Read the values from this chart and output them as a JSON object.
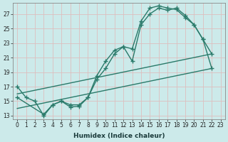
{
  "xlabel": "Humidex (Indice chaleur)",
  "background_color": "#cceaea",
  "grid_color": "#ddbebe",
  "line_color": "#2a7a6a",
  "xlim": [
    -0.5,
    23.5
  ],
  "ylim": [
    12.5,
    28.5
  ],
  "xticks": [
    0,
    1,
    2,
    3,
    4,
    5,
    6,
    7,
    8,
    9,
    10,
    11,
    12,
    13,
    14,
    15,
    16,
    17,
    18,
    19,
    20,
    21,
    22,
    23
  ],
  "yticks": [
    13,
    15,
    17,
    19,
    21,
    23,
    25,
    27
  ],
  "curve1_x": [
    0,
    1,
    2,
    3,
    4,
    5,
    6,
    7,
    8,
    9,
    10,
    11,
    12,
    13,
    14,
    15,
    16,
    17,
    18,
    19,
    20,
    21,
    22
  ],
  "curve1_y": [
    17,
    15.5,
    15,
    13,
    14.5,
    15,
    14.2,
    14.3,
    15.5,
    18.5,
    20.5,
    22.0,
    22.5,
    22.2,
    26.0,
    27.8,
    28.1,
    27.8,
    27.6,
    26.5,
    25.5,
    23.5,
    21.5
  ],
  "curve2_x": [
    0,
    3,
    4,
    5,
    6,
    7,
    8,
    9,
    10,
    11,
    12,
    13,
    14,
    15,
    16,
    17,
    18,
    19,
    20,
    21,
    22
  ],
  "curve2_y": [
    15.5,
    13.2,
    14.5,
    15.0,
    14.5,
    14.5,
    15.5,
    18.0,
    19.5,
    21.5,
    22.5,
    20.5,
    25.5,
    27.0,
    27.8,
    27.5,
    27.8,
    26.8,
    25.5,
    23.5,
    19.5
  ],
  "line3_x": [
    0,
    22
  ],
  "line3_y": [
    14.0,
    19.5
  ],
  "line4_x": [
    0,
    22
  ],
  "line4_y": [
    16.0,
    21.5
  ],
  "marker": "+",
  "markersize": 4.0,
  "linewidth": 1.0,
  "tick_fontsize": 5.5,
  "xlabel_fontsize": 6.5
}
